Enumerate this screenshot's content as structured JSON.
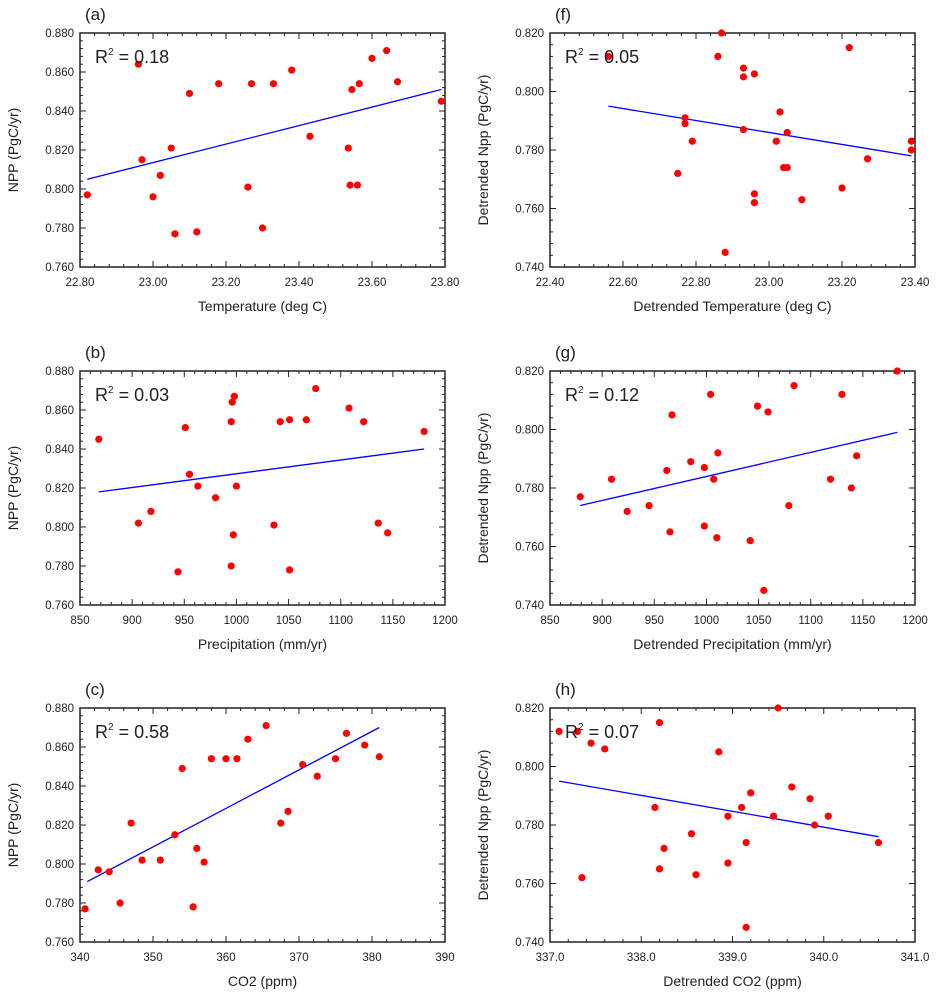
{
  "chart_data": [
    {
      "id": "a",
      "type": "scatter",
      "panel_label": "(a)",
      "r2_label": "R",
      "r2_value": " = 0.18",
      "xlabel": "Temperature (deg C)",
      "ylabel": "NPP (PgC/yr)",
      "xlim": [
        22.8,
        23.8
      ],
      "ylim": [
        0.76,
        0.88
      ],
      "xticks": [
        "22.80",
        "23.00",
        "23.20",
        "23.40",
        "23.60",
        "23.80"
      ],
      "yticks": [
        "0.760",
        "0.780",
        "0.800",
        "0.820",
        "0.840",
        "0.860",
        "0.880"
      ],
      "points": [
        [
          22.82,
          0.797
        ],
        [
          22.96,
          0.864
        ],
        [
          22.97,
          0.815
        ],
        [
          23.0,
          0.796
        ],
        [
          23.02,
          0.807
        ],
        [
          23.05,
          0.821
        ],
        [
          23.06,
          0.777
        ],
        [
          23.1,
          0.849
        ],
        [
          23.12,
          0.778
        ],
        [
          23.18,
          0.854
        ],
        [
          23.26,
          0.801
        ],
        [
          23.27,
          0.854
        ],
        [
          23.3,
          0.78
        ],
        [
          23.33,
          0.854
        ],
        [
          23.38,
          0.861
        ],
        [
          23.43,
          0.827
        ],
        [
          23.535,
          0.821
        ],
        [
          23.54,
          0.802
        ],
        [
          23.545,
          0.851
        ],
        [
          23.56,
          0.802
        ],
        [
          23.565,
          0.854
        ],
        [
          23.6,
          0.867
        ],
        [
          23.64,
          0.871
        ],
        [
          23.67,
          0.855
        ],
        [
          23.79,
          0.845
        ]
      ],
      "fit": [
        [
          22.82,
          0.805
        ],
        [
          23.79,
          0.851
        ]
      ]
    },
    {
      "id": "f",
      "type": "scatter",
      "panel_label": "(f)",
      "r2_label": "R",
      "r2_value": " = 0.05",
      "xlabel": "Detrended Temperature (deg C)",
      "ylabel": "Detrended Npp (PgC/yr)",
      "xlim": [
        22.4,
        23.4
      ],
      "ylim": [
        0.74,
        0.82
      ],
      "xticks": [
        "22.40",
        "22.60",
        "22.80",
        "23.00",
        "23.20",
        "23.40"
      ],
      "yticks": [
        "0.740",
        "0.760",
        "0.780",
        "0.800",
        "0.820"
      ],
      "points": [
        [
          22.56,
          0.812
        ],
        [
          22.75,
          0.772
        ],
        [
          22.77,
          0.789
        ],
        [
          22.77,
          0.791
        ],
        [
          22.79,
          0.783
        ],
        [
          22.86,
          0.812
        ],
        [
          22.87,
          0.82
        ],
        [
          22.88,
          0.745
        ],
        [
          22.93,
          0.808
        ],
        [
          22.93,
          0.805
        ],
        [
          22.93,
          0.787
        ],
        [
          22.96,
          0.806
        ],
        [
          22.96,
          0.765
        ],
        [
          22.96,
          0.762
        ],
        [
          23.02,
          0.783
        ],
        [
          23.03,
          0.793
        ],
        [
          23.04,
          0.774
        ],
        [
          23.05,
          0.774
        ],
        [
          23.05,
          0.786
        ],
        [
          23.09,
          0.763
        ],
        [
          23.2,
          0.767
        ],
        [
          23.22,
          0.815
        ],
        [
          23.27,
          0.777
        ],
        [
          23.39,
          0.78
        ],
        [
          23.39,
          0.783
        ]
      ],
      "fit": [
        [
          22.56,
          0.795
        ],
        [
          23.39,
          0.778
        ]
      ]
    },
    {
      "id": "b",
      "type": "scatter",
      "panel_label": "(b)",
      "r2_label": "R",
      "r2_value": " = 0.03",
      "xlabel": "Precipitation (mm/yr)",
      "ylabel": "NPP (PgC/yr)",
      "xlim": [
        850,
        1200
      ],
      "ylim": [
        0.76,
        0.88
      ],
      "xticks": [
        "850",
        "900",
        "950",
        "1000",
        "1050",
        "1100",
        "1150",
        "1200"
      ],
      "yticks": [
        "0.760",
        "0.780",
        "0.800",
        "0.820",
        "0.840",
        "0.860",
        "0.880"
      ],
      "points": [
        [
          868,
          0.845
        ],
        [
          906,
          0.802
        ],
        [
          918,
          0.808
        ],
        [
          944,
          0.777
        ],
        [
          951,
          0.851
        ],
        [
          955,
          0.827
        ],
        [
          963,
          0.821
        ],
        [
          980,
          0.815
        ],
        [
          995,
          0.854
        ],
        [
          995,
          0.78
        ],
        [
          996,
          0.864
        ],
        [
          997,
          0.796
        ],
        [
          998,
          0.867
        ],
        [
          1000,
          0.821
        ],
        [
          1036,
          0.801
        ],
        [
          1042,
          0.854
        ],
        [
          1051,
          0.855
        ],
        [
          1051,
          0.778
        ],
        [
          1067,
          0.855
        ],
        [
          1076,
          0.871
        ],
        [
          1108,
          0.861
        ],
        [
          1122,
          0.854
        ],
        [
          1136,
          0.802
        ],
        [
          1145,
          0.797
        ],
        [
          1180,
          0.849
        ]
      ],
      "fit": [
        [
          868,
          0.818
        ],
        [
          1180,
          0.84
        ]
      ]
    },
    {
      "id": "g",
      "type": "scatter",
      "panel_label": "(g)",
      "r2_label": "R",
      "r2_value": " = 0.12",
      "xlabel": "Detrended Precipitation (mm/yr)",
      "ylabel": "Detrended Npp (PgC/yr)",
      "xlim": [
        850,
        1200
      ],
      "ylim": [
        0.74,
        0.82
      ],
      "xticks": [
        "850",
        "900",
        "950",
        "1000",
        "1050",
        "1100",
        "1150",
        "1200"
      ],
      "yticks": [
        "0.740",
        "0.760",
        "0.780",
        "0.800",
        "0.820"
      ],
      "points": [
        [
          879,
          0.777
        ],
        [
          909,
          0.783
        ],
        [
          924,
          0.772
        ],
        [
          945,
          0.774
        ],
        [
          962,
          0.786
        ],
        [
          965,
          0.765
        ],
        [
          967,
          0.805
        ],
        [
          985,
          0.789
        ],
        [
          998,
          0.787
        ],
        [
          998,
          0.767
        ],
        [
          1004,
          0.812
        ],
        [
          1007,
          0.783
        ],
        [
          1010,
          0.763
        ],
        [
          1011,
          0.792
        ],
        [
          1042,
          0.762
        ],
        [
          1049,
          0.808
        ],
        [
          1055,
          0.745
        ],
        [
          1059,
          0.806
        ],
        [
          1079,
          0.774
        ],
        [
          1084,
          0.815
        ],
        [
          1119,
          0.783
        ],
        [
          1130,
          0.812
        ],
        [
          1139,
          0.78
        ],
        [
          1144,
          0.791
        ],
        [
          1183,
          0.82
        ]
      ],
      "fit": [
        [
          879,
          0.774
        ],
        [
          1183,
          0.799
        ]
      ]
    },
    {
      "id": "c",
      "type": "scatter",
      "panel_label": "(c)",
      "r2_label": "R",
      "r2_value": " = 0.58",
      "xlabel": "CO2 (ppm)",
      "ylabel": "NPP (PgC/yr)",
      "xlim": [
        340,
        390
      ],
      "ylim": [
        0.76,
        0.88
      ],
      "xticks": [
        "340",
        "350",
        "360",
        "370",
        "380",
        "390"
      ],
      "yticks": [
        "0.760",
        "0.780",
        "0.800",
        "0.820",
        "0.840",
        "0.860",
        "0.880"
      ],
      "points": [
        [
          340.7,
          0.777
        ],
        [
          342.5,
          0.797
        ],
        [
          344,
          0.796
        ],
        [
          345.5,
          0.78
        ],
        [
          347,
          0.821
        ],
        [
          348.5,
          0.802
        ],
        [
          351,
          0.802
        ],
        [
          353,
          0.815
        ],
        [
          354,
          0.849
        ],
        [
          355.5,
          0.778
        ],
        [
          356,
          0.808
        ],
        [
          357,
          0.801
        ],
        [
          358,
          0.854
        ],
        [
          360,
          0.854
        ],
        [
          361.5,
          0.854
        ],
        [
          363,
          0.864
        ],
        [
          365.5,
          0.871
        ],
        [
          367.5,
          0.821
        ],
        [
          368.5,
          0.827
        ],
        [
          370.5,
          0.851
        ],
        [
          372.5,
          0.845
        ],
        [
          375,
          0.854
        ],
        [
          376.5,
          0.867
        ],
        [
          379,
          0.861
        ],
        [
          381,
          0.855
        ]
      ],
      "fit": [
        [
          341,
          0.791
        ],
        [
          381,
          0.87
        ]
      ]
    },
    {
      "id": "h",
      "type": "scatter",
      "panel_label": "(h)",
      "r2_label": "R",
      "r2_value": " = 0.07",
      "xlabel": "Detrended CO2 (ppm)",
      "ylabel": "Detrended Npp (PgC/yr)",
      "xlim": [
        337,
        341
      ],
      "ylim": [
        0.74,
        0.82
      ],
      "xticks": [
        "337.0",
        "338.0",
        "339.0",
        "340.0",
        "341.0"
      ],
      "yticks": [
        "0.740",
        "0.760",
        "0.780",
        "0.800",
        "0.820"
      ],
      "points": [
        [
          337.1,
          0.812
        ],
        [
          337.3,
          0.812
        ],
        [
          337.35,
          0.762
        ],
        [
          337.45,
          0.808
        ],
        [
          337.6,
          0.806
        ],
        [
          338.15,
          0.786
        ],
        [
          338.2,
          0.815
        ],
        [
          338.2,
          0.765
        ],
        [
          338.25,
          0.772
        ],
        [
          338.55,
          0.777
        ],
        [
          338.6,
          0.763
        ],
        [
          338.85,
          0.805
        ],
        [
          338.95,
          0.783
        ],
        [
          338.95,
          0.767
        ],
        [
          339.1,
          0.786
        ],
        [
          339.15,
          0.774
        ],
        [
          339.15,
          0.745
        ],
        [
          339.2,
          0.791
        ],
        [
          339.45,
          0.783
        ],
        [
          339.5,
          0.82
        ],
        [
          339.65,
          0.793
        ],
        [
          339.85,
          0.789
        ],
        [
          339.9,
          0.78
        ],
        [
          340.05,
          0.783
        ],
        [
          340.6,
          0.774
        ]
      ],
      "fit": [
        [
          337.1,
          0.795
        ],
        [
          340.6,
          0.776
        ]
      ]
    }
  ],
  "colors": {
    "points": "#ff0000",
    "fit": "#0000ff",
    "axis": "#222222"
  }
}
